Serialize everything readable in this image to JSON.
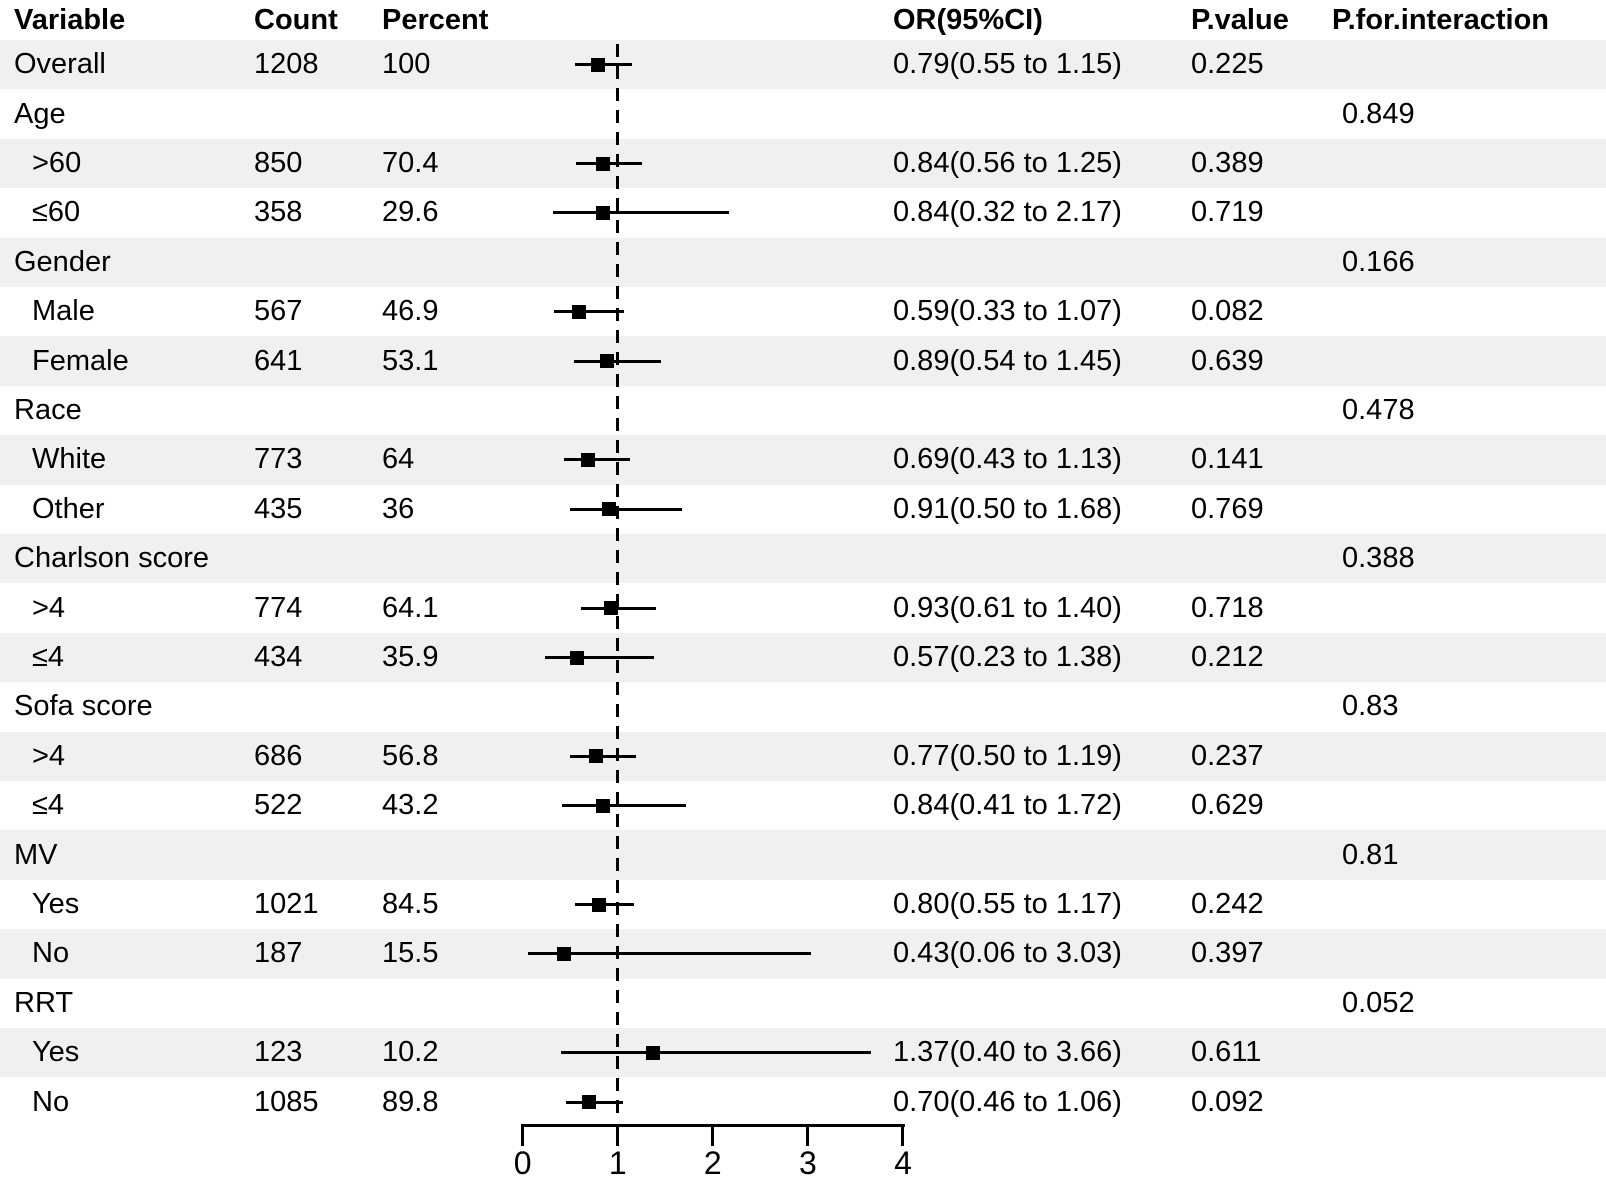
{
  "colors": {
    "background": "#ffffff",
    "row_band": "#f0f0f0",
    "text": "#000000",
    "marker": "#000000",
    "reference_line": "#000000"
  },
  "chart_data": {
    "type": "scatter",
    "subtype": "forest-plot",
    "title": "",
    "xlabel": "",
    "ylabel": "",
    "legend": "none",
    "columns": [
      "Variable",
      "Count",
      "Percent",
      "OR(95%CI)",
      "P.value",
      "P.for.interaction"
    ],
    "x_axis": {
      "range": [
        0,
        4
      ],
      "tick_values": [
        0,
        1,
        2,
        3,
        4
      ],
      "tick_labels": [
        "0",
        "1",
        "2",
        "3",
        "4"
      ],
      "reference_line": 1,
      "reference_line_style": "dashed"
    },
    "rows": [
      {
        "label": "Overall",
        "indent": false,
        "count": "1208",
        "percent": "100",
        "or": 0.79,
        "ci_low": 0.55,
        "ci_high": 1.15,
        "or_ci": "0.79(0.55 to 1.15)",
        "p_value": "0.225",
        "p_interaction": ""
      },
      {
        "label": "Age",
        "indent": false,
        "count": "",
        "percent": "",
        "or": null,
        "ci_low": null,
        "ci_high": null,
        "or_ci": "",
        "p_value": "",
        "p_interaction": "0.849"
      },
      {
        "label": ">60",
        "indent": true,
        "count": "850",
        "percent": "70.4",
        "or": 0.84,
        "ci_low": 0.56,
        "ci_high": 1.25,
        "or_ci": "0.84(0.56 to 1.25)",
        "p_value": "0.389",
        "p_interaction": ""
      },
      {
        "label": "≤60",
        "indent": true,
        "count": "358",
        "percent": "29.6",
        "or": 0.84,
        "ci_low": 0.32,
        "ci_high": 2.17,
        "or_ci": "0.84(0.32 to 2.17)",
        "p_value": "0.719",
        "p_interaction": ""
      },
      {
        "label": "Gender",
        "indent": false,
        "count": "",
        "percent": "",
        "or": null,
        "ci_low": null,
        "ci_high": null,
        "or_ci": "",
        "p_value": "",
        "p_interaction": "0.166"
      },
      {
        "label": "Male",
        "indent": true,
        "count": "567",
        "percent": "46.9",
        "or": 0.59,
        "ci_low": 0.33,
        "ci_high": 1.07,
        "or_ci": "0.59(0.33 to 1.07)",
        "p_value": "0.082",
        "p_interaction": ""
      },
      {
        "label": "Female",
        "indent": true,
        "count": "641",
        "percent": "53.1",
        "or": 0.89,
        "ci_low": 0.54,
        "ci_high": 1.45,
        "or_ci": "0.89(0.54 to 1.45)",
        "p_value": "0.639",
        "p_interaction": ""
      },
      {
        "label": "Race",
        "indent": false,
        "count": "",
        "percent": "",
        "or": null,
        "ci_low": null,
        "ci_high": null,
        "or_ci": "",
        "p_value": "",
        "p_interaction": "0.478"
      },
      {
        "label": "White",
        "indent": true,
        "count": "773",
        "percent": "64",
        "or": 0.69,
        "ci_low": 0.43,
        "ci_high": 1.13,
        "or_ci": "0.69(0.43 to 1.13)",
        "p_value": "0.141",
        "p_interaction": ""
      },
      {
        "label": "Other",
        "indent": true,
        "count": "435",
        "percent": "36",
        "or": 0.91,
        "ci_low": 0.5,
        "ci_high": 1.68,
        "or_ci": "0.91(0.50 to 1.68)",
        "p_value": "0.769",
        "p_interaction": ""
      },
      {
        "label": "Charlson score",
        "indent": false,
        "count": "",
        "percent": "",
        "or": null,
        "ci_low": null,
        "ci_high": null,
        "or_ci": "",
        "p_value": "",
        "p_interaction": "0.388"
      },
      {
        "label": ">4",
        "indent": true,
        "count": "774",
        "percent": "64.1",
        "or": 0.93,
        "ci_low": 0.61,
        "ci_high": 1.4,
        "or_ci": "0.93(0.61 to 1.40)",
        "p_value": "0.718",
        "p_interaction": ""
      },
      {
        "label": "≤4",
        "indent": true,
        "count": "434",
        "percent": "35.9",
        "or": 0.57,
        "ci_low": 0.23,
        "ci_high": 1.38,
        "or_ci": "0.57(0.23 to 1.38)",
        "p_value": "0.212",
        "p_interaction": ""
      },
      {
        "label": "Sofa score",
        "indent": false,
        "count": "",
        "percent": "",
        "or": null,
        "ci_low": null,
        "ci_high": null,
        "or_ci": "",
        "p_value": "",
        "p_interaction": "0.83"
      },
      {
        "label": ">4",
        "indent": true,
        "count": "686",
        "percent": "56.8",
        "or": 0.77,
        "ci_low": 0.5,
        "ci_high": 1.19,
        "or_ci": "0.77(0.50 to 1.19)",
        "p_value": "0.237",
        "p_interaction": ""
      },
      {
        "label": "≤4",
        "indent": true,
        "count": "522",
        "percent": "43.2",
        "or": 0.84,
        "ci_low": 0.41,
        "ci_high": 1.72,
        "or_ci": "0.84(0.41 to 1.72)",
        "p_value": "0.629",
        "p_interaction": ""
      },
      {
        "label": "MV",
        "indent": false,
        "count": "",
        "percent": "",
        "or": null,
        "ci_low": null,
        "ci_high": null,
        "or_ci": "",
        "p_value": "",
        "p_interaction": "0.81"
      },
      {
        "label": "Yes",
        "indent": true,
        "count": "1021",
        "percent": "84.5",
        "or": 0.8,
        "ci_low": 0.55,
        "ci_high": 1.17,
        "or_ci": "0.80(0.55 to 1.17)",
        "p_value": "0.242",
        "p_interaction": ""
      },
      {
        "label": "No",
        "indent": true,
        "count": "187",
        "percent": "15.5",
        "or": 0.43,
        "ci_low": 0.06,
        "ci_high": 3.03,
        "or_ci": "0.43(0.06 to 3.03)",
        "p_value": "0.397",
        "p_interaction": ""
      },
      {
        "label": "RRT",
        "indent": false,
        "count": "",
        "percent": "",
        "or": null,
        "ci_low": null,
        "ci_high": null,
        "or_ci": "",
        "p_value": "",
        "p_interaction": "0.052"
      },
      {
        "label": "Yes",
        "indent": true,
        "count": "123",
        "percent": "10.2",
        "or": 1.37,
        "ci_low": 0.4,
        "ci_high": 3.66,
        "or_ci": "1.37(0.40 to 3.66)",
        "p_value": "0.611",
        "p_interaction": ""
      },
      {
        "label": "No",
        "indent": true,
        "count": "1085",
        "percent": "89.8",
        "or": 0.7,
        "ci_low": 0.46,
        "ci_high": 1.06,
        "or_ci": "0.70(0.46 to 1.06)",
        "p_value": "0.092",
        "p_interaction": ""
      }
    ]
  }
}
